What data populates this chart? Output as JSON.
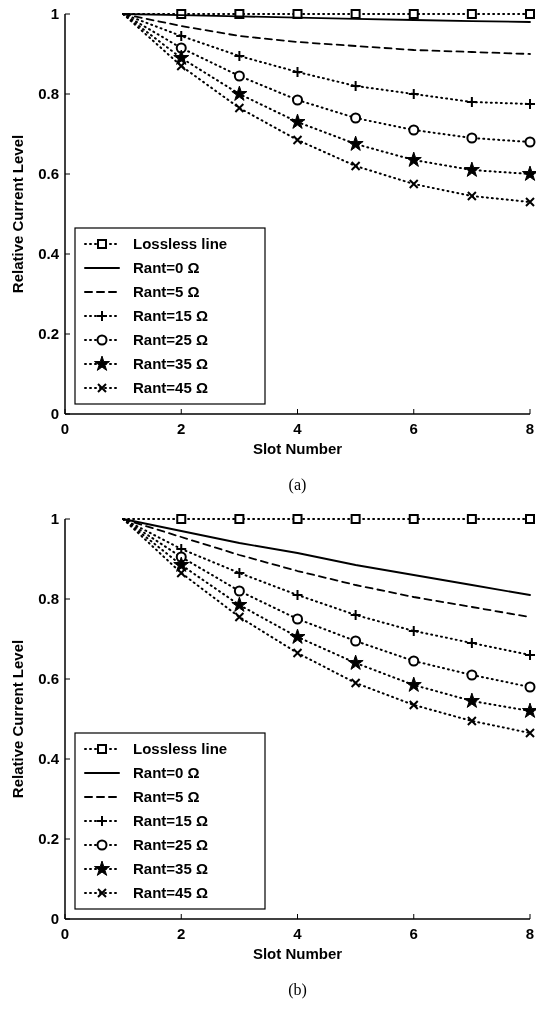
{
  "chart_data": [
    {
      "type": "line",
      "xlabel": "Slot Number",
      "ylabel": "Relative Current Level",
      "x": [
        1,
        2,
        3,
        4,
        5,
        6,
        7,
        8
      ],
      "xlim": [
        0,
        8
      ],
      "xticks": [
        0,
        2,
        4,
        6,
        8
      ],
      "ylim": [
        0,
        1
      ],
      "yticks": [
        0,
        0.2,
        0.4,
        0.6,
        0.8,
        1
      ],
      "legend": "bottom left",
      "grid": false,
      "annotations": [
        "(a)"
      ],
      "series": [
        {
          "name": "Lossless line",
          "color": "#000000",
          "marker": "square",
          "line_style": "dotted",
          "values": [
            1,
            1,
            1,
            1,
            1,
            1,
            1,
            1
          ]
        },
        {
          "name": "Rant=0 Ω",
          "color": "#000000",
          "marker": "none",
          "line_style": "solid",
          "values": [
            1,
            0.997,
            0.994,
            0.991,
            0.988,
            0.985,
            0.982,
            0.98
          ]
        },
        {
          "name": "Rant=5 Ω",
          "color": "#000000",
          "marker": "none",
          "line_style": "dashed",
          "values": [
            1,
            0.97,
            0.945,
            0.93,
            0.92,
            0.91,
            0.905,
            0.9
          ]
        },
        {
          "name": "Rant=15 Ω",
          "color": "#000000",
          "marker": "cross",
          "line_style": "dotted",
          "values": [
            1,
            0.945,
            0.895,
            0.855,
            0.82,
            0.8,
            0.78,
            0.775
          ]
        },
        {
          "name": "Rant=25 Ω",
          "color": "#000000",
          "marker": "circle",
          "line_style": "dotted",
          "values": [
            1,
            0.915,
            0.845,
            0.785,
            0.74,
            0.71,
            0.69,
            0.68
          ]
        },
        {
          "name": "Rant=35 Ω",
          "color": "#000000",
          "marker": "star",
          "line_style": "dotted",
          "values": [
            1,
            0.89,
            0.8,
            0.73,
            0.675,
            0.635,
            0.61,
            0.6
          ]
        },
        {
          "name": "Rant=45 Ω",
          "color": "#000000",
          "marker": "x",
          "line_style": "dotted",
          "values": [
            1,
            0.87,
            0.765,
            0.685,
            0.62,
            0.575,
            0.545,
            0.53
          ]
        }
      ]
    },
    {
      "type": "line",
      "xlabel": "Slot Number",
      "ylabel": "Relative Current Level",
      "x": [
        1,
        2,
        3,
        4,
        5,
        6,
        7,
        8
      ],
      "xlim": [
        0,
        8
      ],
      "xticks": [
        0,
        2,
        4,
        6,
        8
      ],
      "ylim": [
        0,
        1
      ],
      "yticks": [
        0,
        0.2,
        0.4,
        0.6,
        0.8,
        1
      ],
      "legend": "bottom left",
      "grid": false,
      "annotations": [
        "(b)"
      ],
      "series": [
        {
          "name": "Lossless line",
          "color": "#000000",
          "marker": "square",
          "line_style": "dotted",
          "values": [
            1,
            1,
            1,
            1,
            1,
            1,
            1,
            1
          ]
        },
        {
          "name": "Rant=0 Ω",
          "color": "#000000",
          "marker": "none",
          "line_style": "solid",
          "values": [
            1,
            0.97,
            0.94,
            0.915,
            0.885,
            0.86,
            0.835,
            0.81
          ]
        },
        {
          "name": "Rant=5 Ω",
          "color": "#000000",
          "marker": "none",
          "line_style": "dashed",
          "values": [
            1,
            0.955,
            0.91,
            0.87,
            0.835,
            0.805,
            0.78,
            0.755
          ]
        },
        {
          "name": "Rant=15 Ω",
          "color": "#000000",
          "marker": "cross",
          "line_style": "dotted",
          "values": [
            1,
            0.925,
            0.865,
            0.81,
            0.76,
            0.72,
            0.69,
            0.66
          ]
        },
        {
          "name": "Rant=25 Ω",
          "color": "#000000",
          "marker": "circle",
          "line_style": "dotted",
          "values": [
            1,
            0.905,
            0.82,
            0.75,
            0.695,
            0.645,
            0.61,
            0.58
          ]
        },
        {
          "name": "Rant=35 Ω",
          "color": "#000000",
          "marker": "star",
          "line_style": "dotted",
          "values": [
            1,
            0.885,
            0.785,
            0.705,
            0.64,
            0.585,
            0.545,
            0.52
          ]
        },
        {
          "name": "Rant=45 Ω",
          "color": "#000000",
          "marker": "x",
          "line_style": "dotted",
          "values": [
            1,
            0.865,
            0.755,
            0.665,
            0.59,
            0.535,
            0.495,
            0.465
          ]
        }
      ]
    }
  ]
}
